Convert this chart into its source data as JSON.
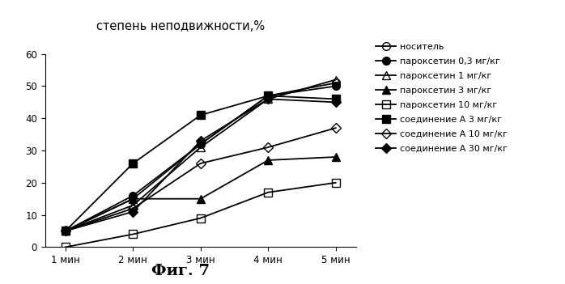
{
  "title": "степень неподвижности,%",
  "x_labels": [
    "1 мин",
    "2 мин",
    "3 мин",
    "4 мин",
    "5 мин"
  ],
  "x_values": [
    1,
    2,
    3,
    4,
    5
  ],
  "ylim": [
    0,
    60
  ],
  "yticks": [
    0,
    10,
    20,
    30,
    40,
    50,
    60
  ],
  "caption": "Фиг. 7",
  "series": [
    {
      "label": "носитель",
      "values": [
        5,
        15,
        32,
        47,
        51
      ],
      "marker": "o",
      "fillstyle": "none",
      "markersize": 7
    },
    {
      "label": "пароксетин 0,3 мг/кг",
      "values": [
        5,
        16,
        32,
        47,
        50
      ],
      "marker": "o",
      "fillstyle": "full",
      "markersize": 7
    },
    {
      "label": "пароксетин 1 мг/кг",
      "values": [
        5,
        13,
        31,
        46,
        52
      ],
      "marker": "^",
      "fillstyle": "none",
      "markersize": 7
    },
    {
      "label": "пароксетин 3 мг/кг",
      "values": [
        5,
        15,
        15,
        27,
        28
      ],
      "marker": "^",
      "fillstyle": "full",
      "markersize": 7
    },
    {
      "label": "пароксетин 10 мг/кг",
      "values": [
        0,
        4,
        9,
        17,
        20
      ],
      "marker": "s",
      "fillstyle": "none",
      "markersize": 7
    },
    {
      "label": "соединение А 3 мг/кг",
      "values": [
        5,
        26,
        41,
        47,
        46
      ],
      "marker": "s",
      "fillstyle": "full",
      "markersize": 7
    },
    {
      "label": "соединение А 10 мг/кг",
      "values": [
        5,
        12,
        26,
        31,
        37
      ],
      "marker": "D",
      "fillstyle": "none",
      "markersize": 6
    },
    {
      "label": "соединение А 30 мг/кг",
      "values": [
        5,
        11,
        33,
        46,
        45
      ],
      "marker": "D",
      "fillstyle": "full",
      "markersize": 6
    }
  ]
}
